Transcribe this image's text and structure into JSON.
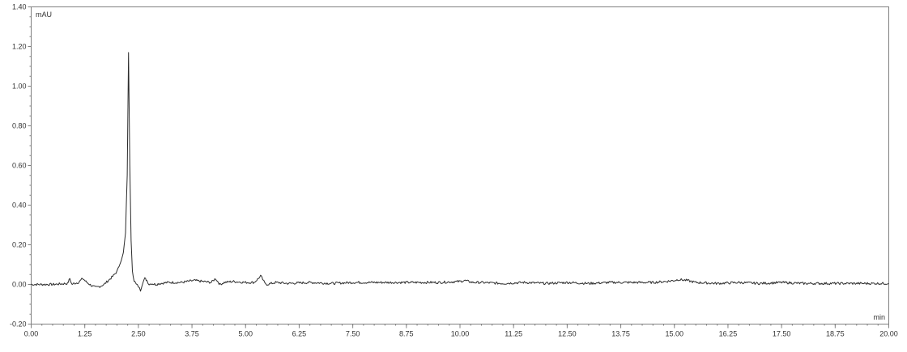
{
  "chart_data": {
    "type": "line",
    "title": "",
    "xlabel": "min",
    "ylabel": "mAU",
    "xlim": [
      0,
      20
    ],
    "ylim": [
      -0.2,
      1.4
    ],
    "grid": false,
    "legend": "none",
    "x_ticks": [
      "0.00",
      "1.25",
      "2.50",
      "3.75",
      "5.00",
      "6.25",
      "7.50",
      "8.75",
      "10.00",
      "11.25",
      "12.50",
      "13.75",
      "15.00",
      "16.25",
      "17.50",
      "18.75",
      "20.00"
    ],
    "y_ticks": [
      "-0.20",
      "0.00",
      "0.20",
      "0.40",
      "0.60",
      "0.80",
      "1.00",
      "1.20",
      "1.40"
    ],
    "series": [
      {
        "color": "#2b2b2b",
        "x": [
          0.0,
          0.5,
          0.85,
          0.9,
          0.95,
          1.0,
          1.1,
          1.2,
          1.3,
          1.4,
          1.5,
          1.6,
          1.7,
          1.8,
          1.9,
          2.0,
          2.05,
          2.1,
          2.15,
          2.2,
          2.24,
          2.27,
          2.3,
          2.33,
          2.36,
          2.4,
          2.45,
          2.5,
          2.55,
          2.6,
          2.65,
          2.7,
          2.75,
          2.8,
          2.9,
          3.0,
          3.2,
          3.5,
          3.8,
          4.0,
          4.2,
          4.3,
          4.35,
          4.4,
          4.5,
          4.7,
          5.0,
          5.2,
          5.3,
          5.35,
          5.4,
          5.45,
          5.5,
          5.7,
          6.0,
          6.5,
          7.0,
          7.5,
          8.0,
          8.5,
          9.0,
          9.5,
          10.0,
          10.1,
          10.3,
          10.5,
          11.0,
          11.5,
          12.0,
          12.5,
          13.0,
          13.5,
          14.0,
          14.5,
          14.8,
          15.0,
          15.1,
          15.3,
          15.5,
          16.0,
          16.5,
          17.0,
          17.5,
          18.0,
          18.5,
          19.0,
          19.5,
          20.0
        ],
        "y": [
          0.0,
          0.0,
          0.005,
          0.03,
          0.0,
          0.005,
          0.01,
          0.03,
          0.01,
          -0.005,
          -0.015,
          -0.01,
          0.0,
          0.02,
          0.04,
          0.065,
          0.09,
          0.12,
          0.16,
          0.26,
          0.55,
          1.17,
          0.6,
          0.22,
          0.07,
          0.02,
          0.0,
          -0.01,
          -0.03,
          0.01,
          0.03,
          0.02,
          0.0,
          0.005,
          0.0,
          0.005,
          0.01,
          0.01,
          0.02,
          0.015,
          0.01,
          0.03,
          0.015,
          0.0,
          0.01,
          0.015,
          0.01,
          0.01,
          0.03,
          0.045,
          0.025,
          0.005,
          0.0,
          0.01,
          0.005,
          0.01,
          0.005,
          0.01,
          0.01,
          0.01,
          0.01,
          0.01,
          0.015,
          0.02,
          0.01,
          0.01,
          0.005,
          0.01,
          0.005,
          0.01,
          0.005,
          0.01,
          0.01,
          0.01,
          0.015,
          0.02,
          0.025,
          0.02,
          0.01,
          0.005,
          0.01,
          0.005,
          0.01,
          0.005,
          0.005,
          0.005,
          0.005,
          0.005
        ]
      }
    ]
  }
}
